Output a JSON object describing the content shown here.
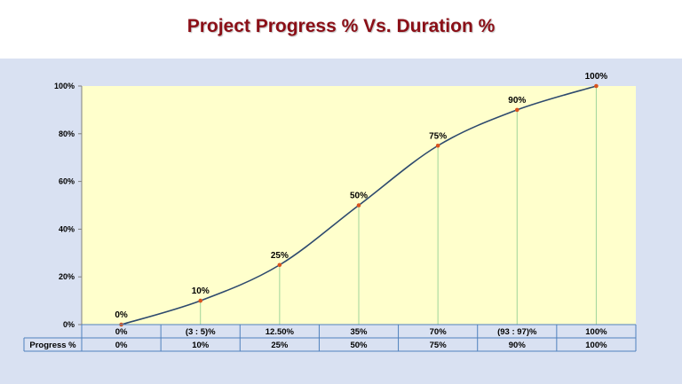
{
  "title": "Project Progress % Vs. Duration %",
  "colors": {
    "title": "#8b0f17",
    "panel": "#d9e1f2",
    "plot_bg": "#ffffcc",
    "curve": "#2e4a6e",
    "marker": "#d9531e",
    "droplines": "#9fd49a",
    "table_border": "#4f81bd"
  },
  "chart_data": {
    "type": "line",
    "title": "Project Progress % Vs. Duration %",
    "xlabel": "",
    "ylabel": "",
    "ylim": [
      0,
      100
    ],
    "y_ticks": [
      "0%",
      "20%",
      "40%",
      "60%",
      "80%",
      "100%"
    ],
    "y_tick_values": [
      0,
      20,
      40,
      60,
      80,
      100
    ],
    "categories": [
      "0%",
      "(3 : 5)%",
      "12.50%",
      "35%",
      "70%",
      "(93 : 97)%",
      "100%"
    ],
    "series": [
      {
        "name": "Progress %",
        "values": [
          0,
          10,
          25,
          50,
          75,
          90,
          100
        ],
        "labels": [
          "0%",
          "10%",
          "25%",
          "50%",
          "75%",
          "90%",
          "100%"
        ]
      }
    ],
    "smooth": true,
    "markers": true,
    "drop_lines": true,
    "grid": false,
    "data_table": {
      "row_header": "Progress %",
      "values": [
        "0%",
        "10%",
        "25%",
        "50%",
        "75%",
        "90%",
        "100%"
      ]
    }
  }
}
